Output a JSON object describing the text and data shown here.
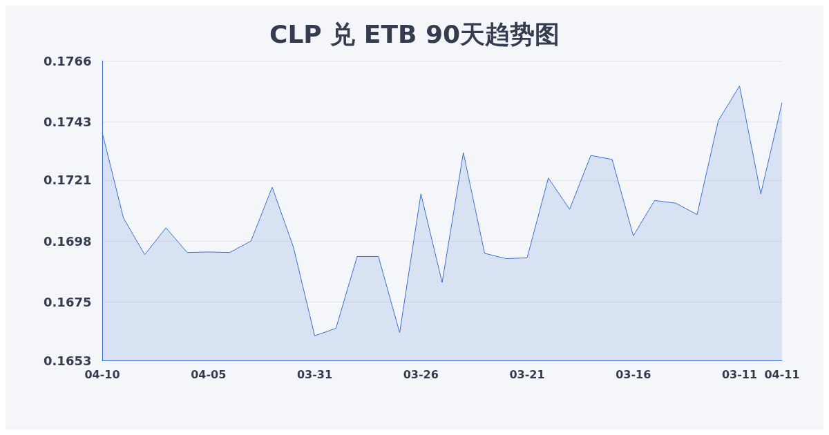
{
  "chart_data": {
    "type": "area",
    "title": "CLP 兑 ETB 90天趋势图",
    "categories": [
      "04-10",
      null,
      null,
      null,
      null,
      "04-05",
      null,
      null,
      null,
      null,
      "03-31",
      null,
      null,
      null,
      null,
      "03-26",
      null,
      null,
      null,
      null,
      "03-21",
      null,
      null,
      null,
      null,
      "03-16",
      null,
      null,
      null,
      null,
      "03-11",
      null,
      "04-11"
    ],
    "values": [
      0.17389,
      0.17067,
      0.16929,
      0.1703,
      0.16937,
      0.16939,
      0.16937,
      0.1698,
      0.17183,
      0.16957,
      0.16623,
      0.16651,
      0.16922,
      0.16922,
      0.16635,
      0.17158,
      0.16824,
      0.17313,
      0.16934,
      0.16914,
      0.16917,
      0.17218,
      0.171,
      0.17303,
      0.17288,
      0.17,
      0.17133,
      0.17123,
      0.1708,
      0.17434,
      0.17565,
      0.17158,
      0.17502
    ],
    "color": "#3a6fd1",
    "ylim": [
      0.1653,
      0.1766
    ],
    "yticks": [
      0.1653,
      0.1675,
      0.1698,
      0.1721,
      0.1743,
      0.1766
    ],
    "grid": true
  }
}
